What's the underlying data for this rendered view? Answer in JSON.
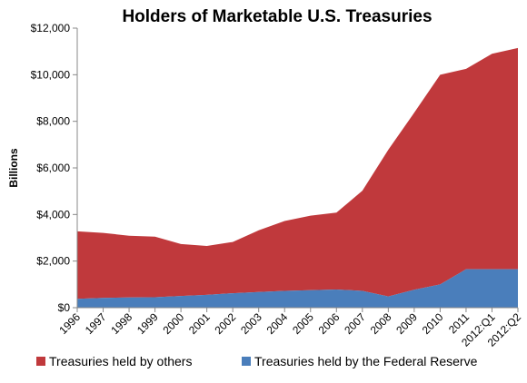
{
  "chart_data": {
    "type": "area",
    "stacked": true,
    "title": "Holders of Marketable U.S. Treasuries",
    "ylabel": "Billions",
    "xlabel": "",
    "categories": [
      "1996",
      "1997",
      "1998",
      "1999",
      "2000",
      "2001",
      "2002",
      "2003",
      "2004",
      "2005",
      "2006",
      "2007",
      "2008",
      "2009",
      "2010",
      "2011",
      "2012:Q1",
      "2012:Q2"
    ],
    "ylim": [
      0,
      12000
    ],
    "yticks": [
      0,
      2000,
      4000,
      6000,
      8000,
      10000,
      12000
    ],
    "ytick_labels": [
      "$0",
      "$2,000",
      "$4,000",
      "$6,000",
      "$8,000",
      "$10,000",
      "$12,000"
    ],
    "grid": false,
    "legend_position": "bottom",
    "series": [
      {
        "name": "Treasuries held by others",
        "color": "#c0393c",
        "values": [
          2900,
          2790,
          2650,
          2600,
          2230,
          2100,
          2200,
          2650,
          3000,
          3200,
          3300,
          4300,
          6300,
          7600,
          9000,
          8600,
          9250,
          9500
        ]
      },
      {
        "name": "Treasuries held by the Federal Reserve",
        "color": "#4a7ebb",
        "values": [
          380,
          420,
          440,
          450,
          500,
          550,
          620,
          670,
          720,
          750,
          780,
          720,
          480,
          770,
          1000,
          1650,
          1650,
          1650
        ]
      }
    ]
  }
}
